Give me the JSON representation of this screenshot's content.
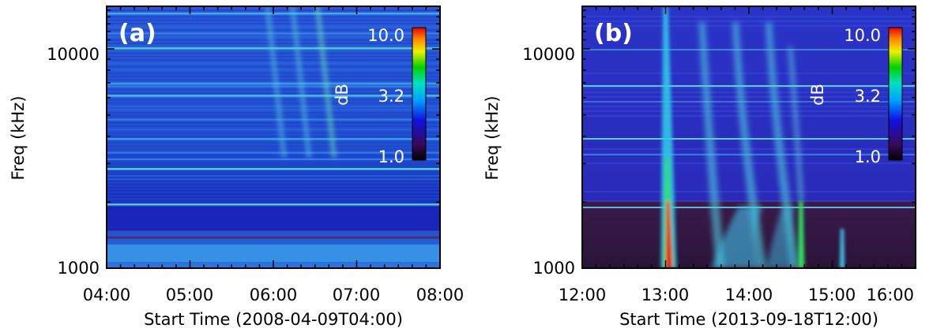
{
  "chart_data": [
    {
      "type": "heatmap",
      "panel_label": "(a)",
      "xlabel": "Start Time (2008-04-09T04:00)",
      "ylabel": "Freq (kHz)",
      "x_ticks": [
        "04:00",
        "05:00",
        "06:00",
        "07:00",
        "08:00"
      ],
      "x_range": [
        "04:00",
        "08:00"
      ],
      "y_ticks": [
        "1000",
        "10000"
      ],
      "y_range_khz": [
        1000,
        16000
      ],
      "y_scale": "log",
      "colorbar": {
        "label": "dB",
        "ticks": [
          "10.0",
          "3.2",
          "1.0"
        ],
        "range": [
          1.0,
          10.0
        ],
        "scale": "log"
      },
      "bursts": [
        {
          "start_hour": 5.9,
          "end_hour": 6.1,
          "peak_db": 3.0
        },
        {
          "start_hour": 6.2,
          "end_hour": 6.4,
          "peak_db": 3.2
        },
        {
          "start_hour": 6.5,
          "end_hour": 6.7,
          "peak_db": 3.5
        }
      ]
    },
    {
      "type": "heatmap",
      "panel_label": "(b)",
      "xlabel": "Start Time (2013-09-18T12:00)",
      "ylabel": "Freq (kHz)",
      "x_ticks": [
        "12:00",
        "13:00",
        "14:00",
        "15:00",
        "16:00"
      ],
      "x_range": [
        "12:00",
        "16:00"
      ],
      "y_ticks": [
        "1000",
        "10000"
      ],
      "y_range_khz": [
        1000,
        16000
      ],
      "y_scale": "log",
      "colorbar": {
        "label": "dB",
        "ticks": [
          "10.0",
          "3.2",
          "1.0"
        ],
        "range": [
          1.0,
          10.0
        ],
        "scale": "log"
      },
      "bursts": [
        {
          "start_hour": 13.0,
          "end_hour": 13.05,
          "peak_db": 10.0
        },
        {
          "start_hour": 13.4,
          "end_hour": 13.6,
          "peak_db": 3.2
        },
        {
          "start_hour": 13.8,
          "end_hour": 14.1,
          "peak_db": 3.2
        },
        {
          "start_hour": 14.2,
          "end_hour": 14.5,
          "peak_db": 3.2
        },
        {
          "start_hour": 14.6,
          "end_hour": 14.7,
          "peak_db": 5.0
        },
        {
          "start_hour": 15.1,
          "end_hour": 15.15,
          "peak_db": 3.5
        }
      ]
    }
  ]
}
